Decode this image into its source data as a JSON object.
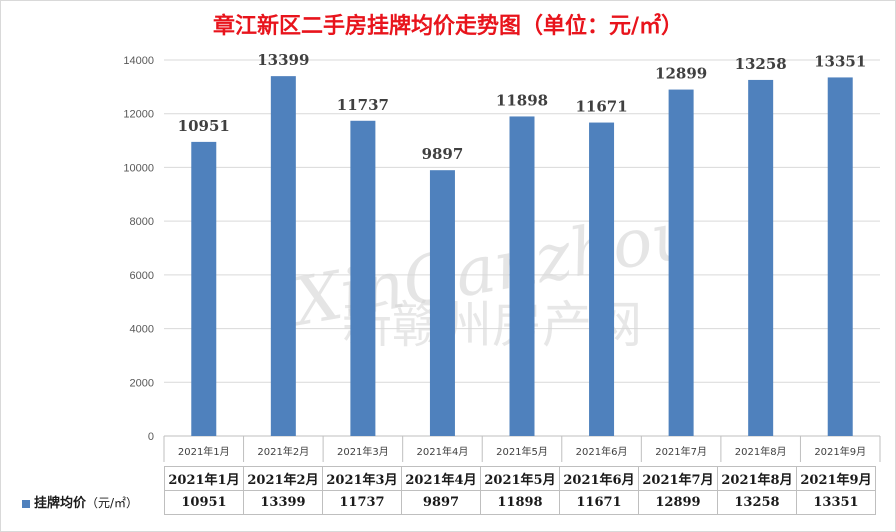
{
  "chart_data": {
    "type": "bar",
    "title": "章江新区二手房挂牌均价走势图（单位：元/㎡）",
    "categories": [
      "2021年1月",
      "2021年2月",
      "2021年3月",
      "2021年4月",
      "2021年5月",
      "2021年6月",
      "2021年7月",
      "2021年8月",
      "2021年9月"
    ],
    "series": [
      {
        "name": "挂牌均价（元/㎡）",
        "values": [
          10951,
          13399,
          11737,
          9897,
          11898,
          11671,
          12899,
          13258,
          13351
        ]
      }
    ],
    "ylim": [
      0,
      14000
    ],
    "yticks": [
      0,
      2000,
      4000,
      6000,
      8000,
      10000,
      12000,
      14000
    ],
    "grid": true,
    "bar_color": "#4f81bd",
    "data_table": true
  },
  "watermark": {
    "line1": "XinGanzhou",
    "line2": "新赣州房产网"
  },
  "table": {
    "series_name": "挂牌均价",
    "series_unit": "（元/㎡）"
  }
}
